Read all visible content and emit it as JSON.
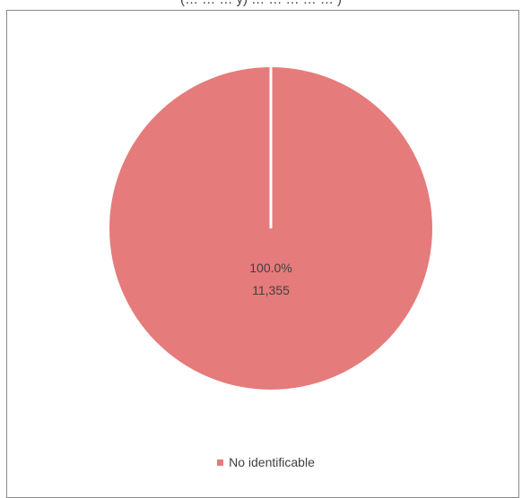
{
  "title": "(… … … y) … … … … … )",
  "chart_data": {
    "type": "pie",
    "title": "(… … … y) … … … … … )",
    "slices": [
      {
        "name": "No identificable",
        "percent_label": "100.0%",
        "value_label": "11,355",
        "value": 11355,
        "share": 1.0
      }
    ],
    "legend": [
      "No identificable"
    ],
    "legend_placement": "bottom",
    "colors": {
      "slice": "#E57B7B",
      "separator": "#ffffff",
      "label_text": "#404040"
    }
  }
}
